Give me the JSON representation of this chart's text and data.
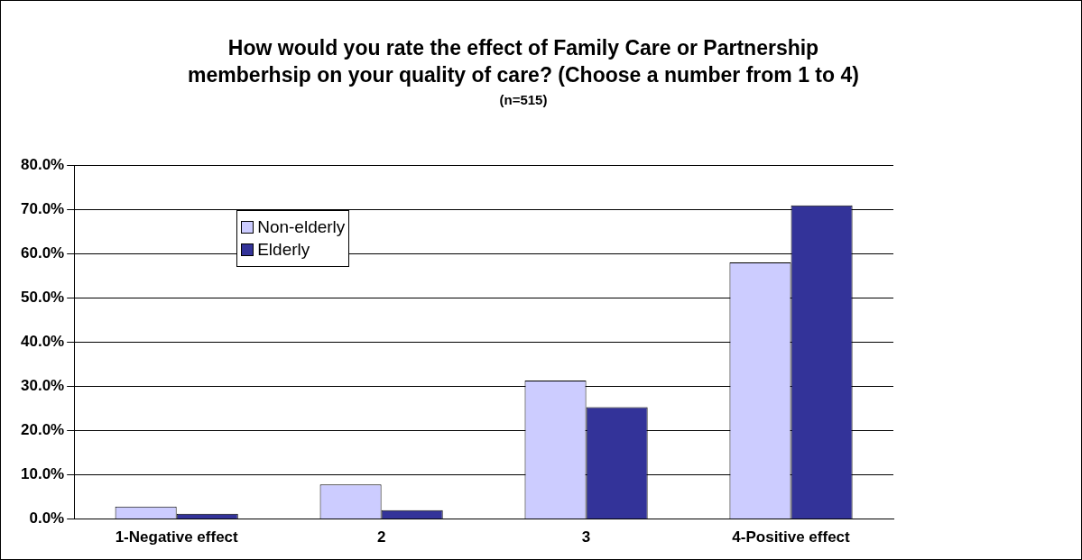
{
  "chart_data": {
    "type": "bar",
    "title": "How would you rate the effect of Family Care or Partnership memberhsip on your quality of care? (Choose a number from 1 to 4)",
    "subtitle": "(n=515)",
    "categories": [
      "1-Negative effect",
      "2",
      "3",
      "4-Positive effect"
    ],
    "series": [
      {
        "name": "Non-elderly",
        "color": "#ccccff",
        "values": [
          2.8,
          7.8,
          31.3,
          58.0
        ]
      },
      {
        "name": "Elderly",
        "color": "#333399",
        "values": [
          1.2,
          2.0,
          25.3,
          70.9
        ]
      }
    ],
    "ylim": [
      0,
      80
    ],
    "yticks": [
      {
        "value": 0,
        "label": "0.0%"
      },
      {
        "value": 10,
        "label": "10.0%"
      },
      {
        "value": 20,
        "label": "20.0%"
      },
      {
        "value": 30,
        "label": "30.0%"
      },
      {
        "value": 40,
        "label": "40.0%"
      },
      {
        "value": 50,
        "label": "50.0%"
      },
      {
        "value": 60,
        "label": "60.0%"
      },
      {
        "value": 70,
        "label": "70.0%"
      },
      {
        "value": 80,
        "label": "80.0%"
      }
    ],
    "grid": "y",
    "legend": "top left"
  }
}
